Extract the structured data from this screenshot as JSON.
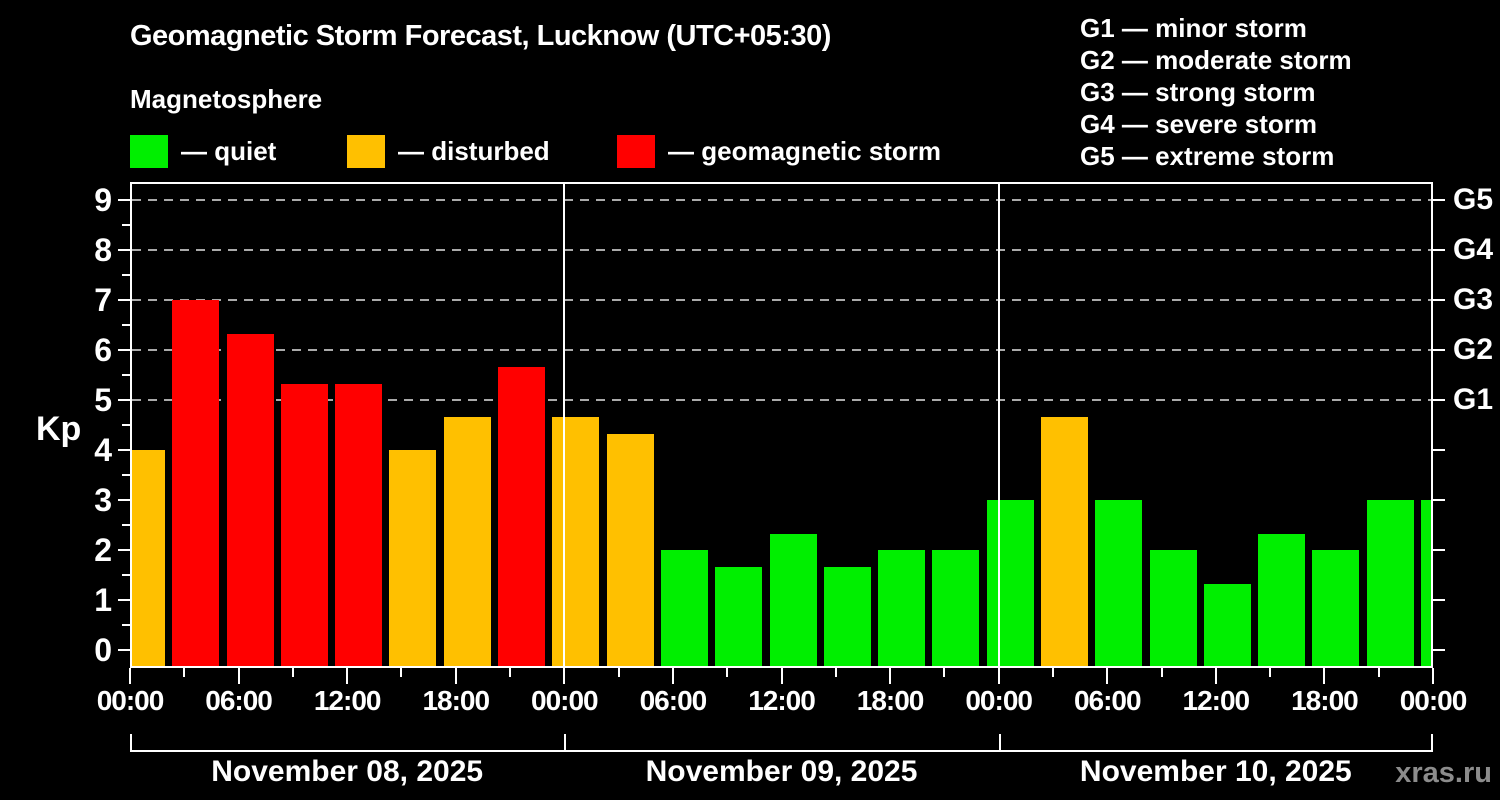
{
  "title": "Geomagnetic Storm Forecast, Lucknow (UTC+05:30)",
  "subtitle": "Magnetosphere",
  "status_legend": [
    {
      "key": "quiet",
      "label": "— quiet",
      "color": "#00ef00"
    },
    {
      "key": "disturbed",
      "label": "— disturbed",
      "color": "#ffc000"
    },
    {
      "key": "storm",
      "label": "— geomagnetic storm",
      "color": "#ff0000"
    }
  ],
  "g_scale_legend": [
    {
      "label": "G1 — minor storm"
    },
    {
      "label": "G2 — moderate storm"
    },
    {
      "label": "G3 — strong storm"
    },
    {
      "label": "G4 — severe storm"
    },
    {
      "label": "G5 — extreme storm"
    }
  ],
  "watermark": "xras.ru",
  "chart_data": {
    "type": "bar",
    "title": "Geomagnetic Storm Forecast, Lucknow (UTC+05:30)",
    "ylabel": "Kp",
    "ylim": [
      0,
      9
    ],
    "y_ticks": [
      0,
      1,
      2,
      3,
      4,
      5,
      6,
      7,
      8,
      9
    ],
    "grid_kp_levels": [
      5,
      6,
      7,
      8,
      9
    ],
    "grid_style": "dashed",
    "right_axis": [
      {
        "label": "G5",
        "kp": 9
      },
      {
        "label": "G4",
        "kp": 8
      },
      {
        "label": "G3",
        "kp": 7
      },
      {
        "label": "G2",
        "kp": 6
      },
      {
        "label": "G1",
        "kp": 5
      }
    ],
    "x_tick_labels_6h": [
      "00:00",
      "06:00",
      "12:00",
      "18:00",
      "00:00",
      "06:00",
      "12:00",
      "18:00",
      "00:00",
      "06:00",
      "12:00",
      "18:00",
      "00:00"
    ],
    "bar_interval_hours": 3,
    "days": [
      {
        "date": "November 08, 2025",
        "kp": [
          4,
          7,
          6.33,
          5.33,
          5.33,
          4,
          4.67,
          5.67
        ]
      },
      {
        "date": "November 09, 2025",
        "kp": [
          4.67,
          4.33,
          2,
          1.67,
          2.33,
          1.67,
          2,
          2
        ]
      },
      {
        "date": "November 10, 2025",
        "kp": [
          3,
          4.67,
          3,
          2,
          1.33,
          2.33,
          2,
          3
        ]
      }
    ],
    "next_period_kp": 3,
    "status_thresholds": {
      "disturbed_min_kp": 4,
      "storm_min_kp": 5
    },
    "legend_position": "top"
  }
}
